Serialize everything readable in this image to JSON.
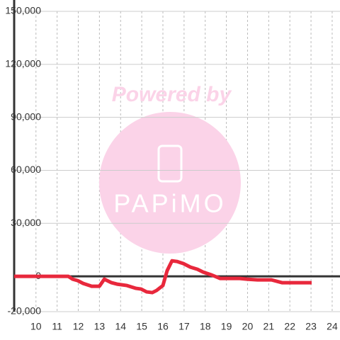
{
  "chart_data": {
    "type": "line",
    "watermark": {
      "top": "Powered by",
      "logo": "PAPiMO"
    },
    "x": [
      8.97,
      11.53,
      11.73,
      11.97,
      12.23,
      12.63,
      13.0,
      13.23,
      13.57,
      13.83,
      14.3,
      14.73,
      14.97,
      15.23,
      15.5,
      15.7,
      16.0,
      16.2,
      16.43,
      16.67,
      16.97,
      17.3,
      17.63,
      17.9,
      18.3,
      18.7,
      19.63,
      19.97,
      20.47,
      21.13,
      21.63,
      23.03
    ],
    "series": [
      {
        "color": "#e8283c",
        "values": [
          0,
          0,
          -1600,
          -2400,
          -4000,
          -5600,
          -5600,
          -1600,
          -3600,
          -4400,
          -5200,
          -6800,
          -7200,
          -8800,
          -9200,
          -8000,
          -5200,
          3200,
          8800,
          8400,
          7200,
          5200,
          4000,
          2400,
          800,
          -1200,
          -1200,
          -1600,
          -2000,
          -2000,
          -3600,
          -3600
        ]
      }
    ],
    "xlim": [
      8.97,
      24.37
    ],
    "xticks": [
      10,
      11,
      12,
      13,
      14,
      15,
      16,
      17,
      18,
      19,
      20,
      21,
      22,
      23,
      24
    ],
    "ylim": [
      -20000,
      150000
    ],
    "yticks": [
      {
        "value": -20000,
        "label": "-20,000"
      },
      0,
      {
        "value": 30000,
        "label": "30,000"
      },
      {
        "value": 60000,
        "label": "60,000"
      },
      {
        "value": 90000,
        "label": "90,000"
      },
      {
        "value": 120000,
        "label": "120,000"
      },
      {
        "value": 150000,
        "label": "150,000"
      }
    ],
    "grid": true
  }
}
